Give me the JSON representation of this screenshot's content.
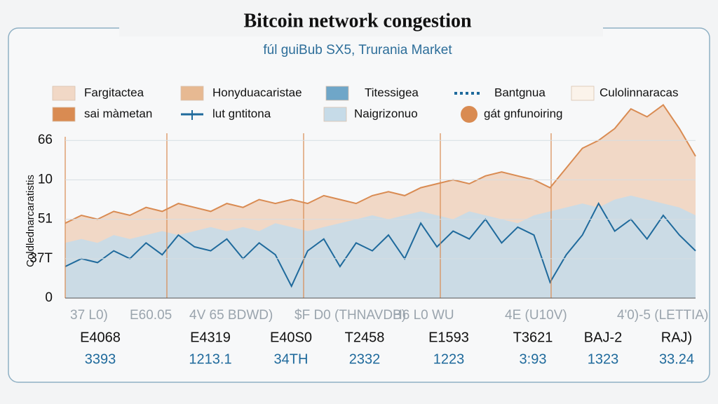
{
  "chart_data": {
    "type": "area-line",
    "title": "Bitcoin network congestion",
    "subtitle": "fúl guiBub SX5, Trurania Market",
    "y_label": "Coldlednarcaratistis",
    "ylim": [
      0,
      5
    ],
    "yticks": [
      0,
      {
        "value": 1,
        "label": "37T"
      },
      {
        "value": 2,
        "label": "51"
      },
      {
        "value": 3,
        "label": "10"
      },
      {
        "value": 4,
        "label": "66"
      }
    ],
    "x_labels": [
      "37 L0)",
      "E60.05",
      "4V 65 BDWD)",
      "$F D0 (THNAVDB)",
      "H6 L0 WU",
      "4E (U10V)",
      "4'0)-5 (LETTIA)"
    ],
    "series": [
      {
        "name": "Fargitactea",
        "kind": "area-line",
        "color": "#d98b52",
        "fill": "#f1d8c6",
        "values": [
          1.9,
          2.1,
          2.0,
          2.2,
          2.1,
          2.3,
          2.2,
          2.4,
          2.3,
          2.2,
          2.4,
          2.3,
          2.5,
          2.4,
          2.5,
          2.4,
          2.6,
          2.5,
          2.4,
          2.6,
          2.7,
          2.6,
          2.8,
          2.9,
          3.0,
          2.9,
          3.1,
          3.2,
          3.1,
          3.0,
          2.8,
          3.3,
          3.8,
          4.0,
          4.3,
          4.8,
          4.6,
          4.9,
          4.3,
          3.6
        ]
      },
      {
        "name": "Naigrizonuo",
        "kind": "area",
        "color": "#c6dbe8",
        "fill": "#c6dbe8",
        "values": [
          1.4,
          1.5,
          1.4,
          1.6,
          1.5,
          1.6,
          1.7,
          1.6,
          1.7,
          1.8,
          1.7,
          1.8,
          1.7,
          1.9,
          1.8,
          1.7,
          1.8,
          1.9,
          2.0,
          2.1,
          2.0,
          2.1,
          2.2,
          2.1,
          2.0,
          2.2,
          2.1,
          2.0,
          1.9,
          2.1,
          2.2,
          2.3,
          2.4,
          2.3,
          2.5,
          2.6,
          2.5,
          2.4,
          2.3,
          2.1
        ]
      },
      {
        "name": "lut gntitona",
        "kind": "line",
        "color": "#1f6a9c",
        "values": [
          0.8,
          1.0,
          0.9,
          1.2,
          1.0,
          1.4,
          1.1,
          1.6,
          1.3,
          1.2,
          1.5,
          1.0,
          1.4,
          1.1,
          0.3,
          1.2,
          1.5,
          0.8,
          1.4,
          1.2,
          1.6,
          1.0,
          1.9,
          1.3,
          1.7,
          1.5,
          2.0,
          1.4,
          1.8,
          1.6,
          0.4,
          1.1,
          1.6,
          2.4,
          1.7,
          2.0,
          1.5,
          2.1,
          1.6,
          1.2
        ]
      }
    ],
    "legend_items": [
      {
        "name": "Honyduacaristae",
        "color": "#e7b992"
      },
      {
        "name": "Titessigea",
        "color": "#6fa6c8"
      },
      {
        "name": "Bantgnua",
        "color": "#1f6a9c"
      },
      {
        "name": "Culolinnaracas",
        "color": "#fbf3ea"
      },
      {
        "name": "sai màmetan",
        "color": "#d98b52"
      },
      {
        "name": "gát gnfunoiring",
        "color": "#d98b52"
      }
    ],
    "table": {
      "codes": [
        "E4068",
        "E4319",
        "E40S0",
        "T2458",
        "E1593",
        "T3621",
        "BAJ-2",
        "RAJ)"
      ],
      "values": [
        "3393",
        "1213.1",
        "34TH",
        "2332",
        "1223",
        "3:93",
        "1323",
        "33.24"
      ]
    }
  }
}
